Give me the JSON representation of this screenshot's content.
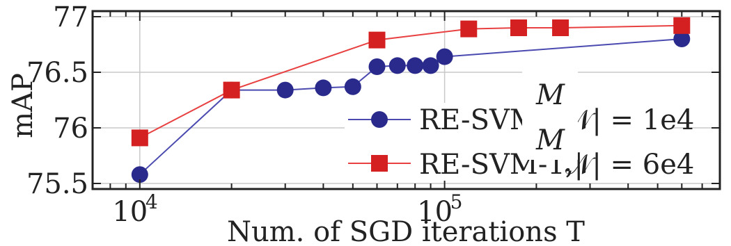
{
  "chart_data": {
    "type": "line",
    "title": "",
    "xlabel": "Num. of SGD iterations T",
    "ylabel": "mAP",
    "xscale": "log",
    "xlim": [
      7000,
      800000
    ],
    "ylim": [
      75.45,
      77.05
    ],
    "x_ticks": [
      {
        "value": 10000,
        "base": "10",
        "exp": "4"
      },
      {
        "value": 100000,
        "base": "10",
        "exp": "5"
      }
    ],
    "y_ticks": [
      {
        "value": 75.5,
        "label": "75.5"
      },
      {
        "value": 76,
        "label": "76"
      },
      {
        "value": 76.5,
        "label": "76.5"
      },
      {
        "value": 77,
        "label": "77"
      }
    ],
    "grid": true,
    "legend_position": "right-center",
    "series": [
      {
        "name": "RE-SVM-1,|𝒩| = 1e4",
        "legend_visible": "RE-SVM",
        "legend_math": "𝒩| = 1e4",
        "color": "#2a2a8c",
        "line_color": "#4a4ab0",
        "marker": "circle",
        "x": [
          10000,
          20000,
          30000,
          40000,
          50000,
          60000,
          70000,
          80000,
          90000,
          100000,
          600000
        ],
        "y": [
          75.58,
          76.34,
          76.34,
          76.36,
          76.37,
          76.55,
          76.56,
          76.56,
          76.56,
          76.64,
          76.8
        ]
      },
      {
        "name": "RE-SVM-1,|𝒩| = 6e4",
        "legend_visible": "RE-SVM-1,|",
        "legend_math": "𝒩| = 6e4",
        "color": "#d42020",
        "line_color": "#e84040",
        "marker": "square",
        "x": [
          10000,
          20000,
          60000,
          120000,
          175000,
          240000,
          600000
        ],
        "y": [
          75.91,
          76.34,
          76.79,
          76.89,
          76.9,
          76.9,
          76.92
        ]
      }
    ],
    "overlay_glyphs": [
      "M",
      "M"
    ]
  }
}
